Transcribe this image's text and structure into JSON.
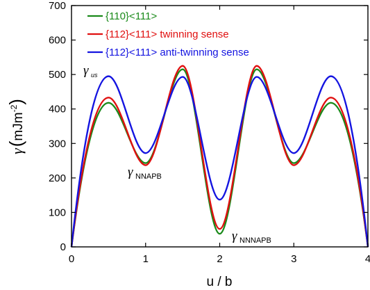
{
  "chart_data": {
    "type": "line",
    "xlabel": "u / b",
    "ylabel": {
      "symbol": "γ",
      "unit_main": "mJm",
      "unit_sup": "-2"
    },
    "xlim": [
      0,
      4
    ],
    "ylim": [
      0,
      700
    ],
    "xticks": [
      0,
      1,
      2,
      3,
      4
    ],
    "yticks": [
      0,
      100,
      200,
      300,
      400,
      500,
      600,
      700
    ],
    "grid": false,
    "legend_position": "top-left",
    "series": [
      {
        "name": "{110}<111>",
        "color": "#1a8a1a",
        "x": [
          0,
          0.5,
          1,
          1.5,
          2,
          2.5,
          3,
          3.5,
          4
        ],
        "y": [
          0,
          418,
          243,
          515,
          38,
          515,
          243,
          418,
          0
        ]
      },
      {
        "name": "{112}<111> twinning sense",
        "color": "#e01010",
        "x": [
          0,
          0.5,
          1,
          1.5,
          2,
          2.5,
          3,
          3.5,
          4
        ],
        "y": [
          0,
          433,
          237,
          525,
          52,
          525,
          237,
          433,
          0
        ]
      },
      {
        "name": "{112}<111> anti-twinning sense",
        "color": "#1414e0",
        "x": [
          0,
          0.5,
          1,
          1.5,
          2,
          2.5,
          3,
          3.5,
          4
        ],
        "y": [
          0,
          495,
          272,
          493,
          137,
          493,
          272,
          495,
          0
        ]
      }
    ],
    "annotations": [
      {
        "main": "γ",
        "sub": "us"
      },
      {
        "main": "γ",
        "sub": "NNAPB"
      },
      {
        "main": "γ",
        "sub": "NNNAPB"
      }
    ]
  }
}
